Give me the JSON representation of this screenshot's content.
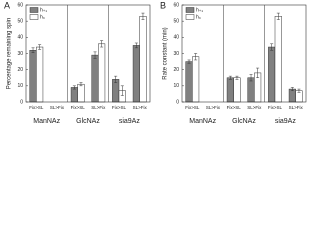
{
  "chart_data": [
    {
      "type": "bar",
      "panel": "A",
      "y_label": "Percentage remaining spin",
      "categories": [
        "Fix>SL",
        "SL>Fix",
        "Fix>SL",
        "SL>Fix",
        "Fix>SL",
        "SL>Fix"
      ],
      "groups": [
        "ManNAz",
        "GlcNAz",
        "sia9Az"
      ],
      "series": [
        {
          "name": "h₊₁",
          "color": "#808080",
          "values": [
            32,
            null,
            9,
            29,
            14,
            35
          ],
          "errors": [
            1.5,
            null,
            1,
            2,
            2,
            1.5
          ]
        },
        {
          "name": "h₀",
          "color": "#ffffff",
          "values": [
            34,
            null,
            11,
            36,
            7,
            53
          ],
          "errors": [
            1.5,
            null,
            1,
            2,
            3,
            2
          ]
        }
      ],
      "ylim": [
        0,
        60
      ],
      "yticks": [
        0,
        10,
        20,
        30,
        40,
        50,
        60
      ],
      "legend": "upper left"
    },
    {
      "type": "bar",
      "panel": "B",
      "y_label": "Rate constant (min)",
      "categories": [
        "Fix>SL",
        "SL>Fix",
        "Fix>SL",
        "SL>Fix",
        "Fix>SL",
        "SL>Fix"
      ],
      "groups": [
        "ManNAz",
        "GlcNAz",
        "sia9Az"
      ],
      "series": [
        {
          "name": "h₊₁",
          "color": "#808080",
          "values": [
            25,
            null,
            15,
            15,
            34,
            8
          ],
          "errors": [
            1,
            null,
            1,
            2,
            2,
            1
          ]
        },
        {
          "name": "h₀",
          "color": "#ffffff",
          "values": [
            28,
            null,
            15,
            18,
            53,
            7
          ],
          "errors": [
            2,
            null,
            1,
            3,
            2,
            1
          ]
        }
      ],
      "ylim": [
        0,
        60
      ],
      "yticks": [
        0,
        10,
        20,
        30,
        40,
        50,
        60
      ],
      "legend": "upper left"
    }
  ]
}
